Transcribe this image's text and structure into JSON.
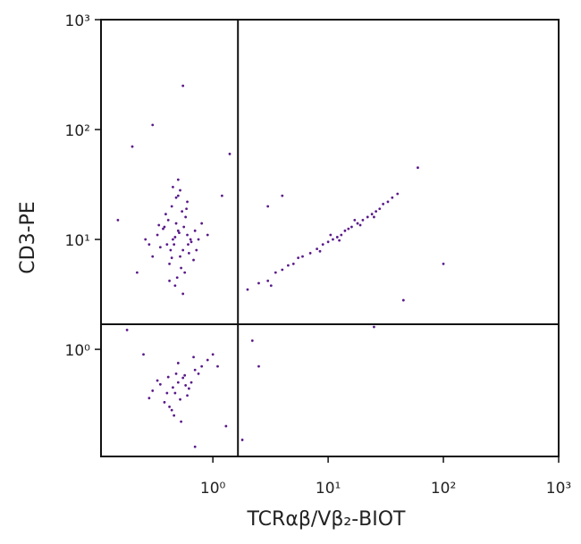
{
  "chart_data": {
    "type": "scatter",
    "xlabel": "TCRαβ/Vβ₂-BIOT",
    "ylabel": "CD3-PE",
    "log_x": true,
    "log_y": true,
    "xlim": [
      0.107,
      1000
    ],
    "ylim": [
      0.106,
      1000
    ],
    "xticks": [
      {
        "value": 1,
        "label": "10⁰"
      },
      {
        "value": 10,
        "label": "10¹"
      },
      {
        "value": 100,
        "label": "10²"
      },
      {
        "value": 1000,
        "label": "10³"
      }
    ],
    "yticks": [
      {
        "value": 1,
        "label": "10⁰"
      },
      {
        "value": 10,
        "label": "10¹"
      },
      {
        "value": 100,
        "label": "10²"
      },
      {
        "value": 1000,
        "label": "10³"
      }
    ],
    "quadrant": {
      "x": 1.65,
      "y": 1.69
    },
    "series": [
      {
        "color": "#5a1a8a",
        "x": [
          0.45,
          0.5,
          0.55,
          0.4,
          0.6,
          0.48,
          0.52,
          0.38,
          0.65,
          0.42,
          0.58,
          0.47,
          0.35,
          0.7,
          0.44,
          0.53,
          0.62,
          0.33,
          0.5,
          0.46,
          0.56,
          0.41,
          0.75,
          0.3,
          0.49,
          0.54,
          0.37,
          0.68,
          0.43,
          0.6,
          0.51,
          0.28,
          0.8,
          0.45,
          0.57,
          0.39,
          0.64,
          0.47,
          0.52,
          0.34,
          0.72,
          0.44,
          0.59,
          0.5,
          0.42,
          0.9,
          0.26,
          0.55,
          0.48,
          0.61,
          0.45,
          0.5,
          0.4,
          0.55,
          0.6,
          0.35,
          0.48,
          0.52,
          0.7,
          0.42,
          0.3,
          0.65,
          0.8,
          0.46,
          0.57,
          0.38,
          0.5,
          0.9,
          0.44,
          0.62,
          0.33,
          0.75,
          1.0,
          0.53,
          0.47,
          0.28,
          0.68,
          0.41,
          0.58,
          1.1,
          2,
          2.5,
          3,
          3.5,
          4,
          4.5,
          5,
          6,
          7,
          8,
          9,
          10,
          11,
          12,
          13,
          14,
          15,
          16,
          18,
          20,
          22,
          24,
          26,
          28,
          30,
          33,
          36,
          40,
          5.5,
          8.5,
          10.5,
          12.5,
          17,
          19,
          25,
          3.2,
          0.55,
          0.3,
          0.2,
          0.15,
          0.22,
          1.2,
          1.3,
          1.8,
          2.5,
          3,
          100,
          45,
          0.7,
          0.25,
          2.2,
          25,
          0.18,
          1.4,
          60,
          4
        ],
        "y": [
          10,
          12,
          8,
          9,
          11,
          14,
          7,
          13,
          9.5,
          6,
          16,
          10.5,
          8.5,
          12,
          20,
          5.5,
          7.5,
          11,
          25,
          9,
          13,
          15,
          10,
          7,
          4.5,
          18,
          12.5,
          6.5,
          8,
          22,
          11.5,
          9,
          14,
          30,
          5,
          17,
          10,
          3.8,
          28,
          13.5,
          8,
          6.8,
          19,
          35,
          4.2,
          11,
          10,
          3.2,
          24,
          9,
          0.45,
          0.5,
          0.4,
          0.55,
          0.38,
          0.48,
          0.6,
          0.35,
          0.65,
          0.3,
          0.42,
          0.5,
          0.7,
          0.25,
          0.58,
          0.33,
          0.75,
          0.8,
          0.28,
          0.44,
          0.52,
          0.6,
          0.9,
          0.22,
          0.4,
          0.36,
          0.85,
          0.56,
          0.47,
          0.7,
          3.5,
          4,
          4.2,
          5,
          5.3,
          5.8,
          6,
          7,
          7.5,
          8.2,
          9,
          9.5,
          10,
          10.5,
          11,
          12,
          12.5,
          13,
          14,
          15,
          16,
          17,
          18,
          19,
          21,
          22,
          24,
          26,
          6.8,
          7.8,
          11,
          9.8,
          15,
          13.5,
          16,
          3.8,
          250,
          110,
          70,
          15,
          5,
          25,
          0.2,
          0.15,
          0.7,
          20,
          6,
          2.8,
          0.13,
          0.9,
          1.2,
          1.6,
          1.5,
          60,
          45,
          25
        ]
      }
    ]
  }
}
